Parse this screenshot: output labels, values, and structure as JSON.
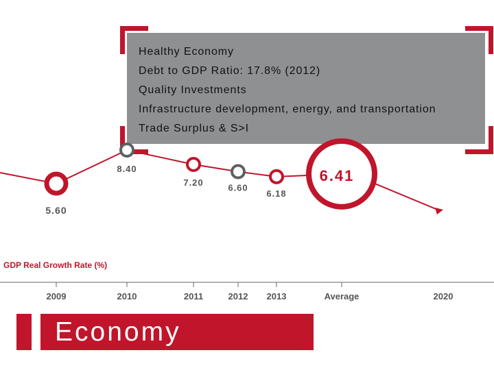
{
  "info_box": {
    "lines": [
      "Healthy Economy",
      "Debt to GDP Ratio: 17.8% (2012)",
      "Quality Investments",
      "Infrastructure development, energy, and transportation",
      "Trade Surplus & S>I"
    ]
  },
  "chart_data": {
    "type": "line",
    "series": [
      {
        "name": "GDP Real Growth Rate (%)",
        "points": [
          {
            "category": "2009",
            "value": 5.6,
            "label": "5.60"
          },
          {
            "category": "2010",
            "value": 8.4,
            "label": "8.40"
          },
          {
            "category": "2011",
            "value": 7.2,
            "label": "7.20"
          },
          {
            "category": "2012",
            "value": 6.6,
            "label": "6.60"
          },
          {
            "category": "2013",
            "value": 6.18,
            "label": "6.18"
          },
          {
            "category": "Average",
            "value": 6.41,
            "label": "6.41"
          }
        ]
      }
    ],
    "categories": [
      "2009",
      "2010",
      "2011",
      "2012",
      "2013",
      "Average",
      "2020"
    ],
    "series_label": "GDP Real Growth Rate (%)",
    "title": "",
    "xlabel": "",
    "ylabel": "",
    "colors": {
      "accent": "#c0152b",
      "neutral": "#5f6062",
      "axis": "#666666"
    }
  },
  "footer": {
    "title": "Economy"
  }
}
